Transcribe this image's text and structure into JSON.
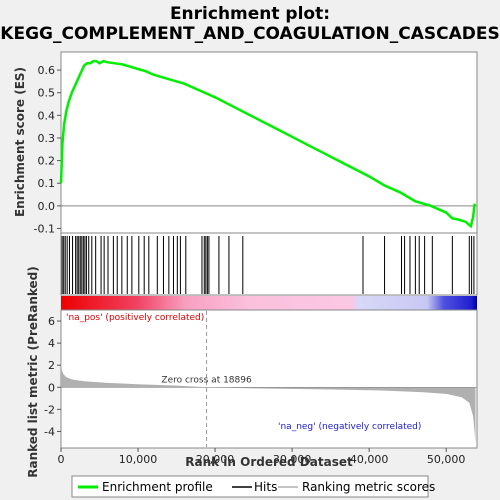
{
  "chart_data": {
    "type": "line",
    "title_line1": "Enrichment plot:",
    "title_line2": "KEGG_COMPLEMENT_AND_COAGULATION_CASCADES",
    "es_ylabel": "Enrichment score (ES)",
    "metric_ylabel_line1": "Ranked list metric (PreRanked)",
    "xlabel": "Rank in Ordered Dataset",
    "xlim": [
      0,
      54000
    ],
    "x_ticks": [
      0,
      10000,
      20000,
      30000,
      40000,
      50000
    ],
    "x_tick_labels": [
      "0",
      "10,000",
      "20,000",
      "30,000",
      "40,000",
      "50,000"
    ],
    "es_ylim": [
      -0.12,
      0.68
    ],
    "es_ticks": [
      -0.1,
      0.0,
      0.1,
      0.2,
      0.3,
      0.4,
      0.5,
      0.6
    ],
    "es_tick_labels": [
      "-0.1",
      "0.0",
      "0.1",
      "0.2",
      "0.3",
      "0.4",
      "0.5",
      "0.6"
    ],
    "metric_ylim": [
      -5.5,
      7.0
    ],
    "metric_ticks": [
      -4,
      -2,
      0,
      2,
      4,
      6
    ],
    "metric_tick_labels": [
      "-4",
      "-2",
      "0",
      "2",
      "4",
      "6"
    ],
    "enrichment_profile": {
      "x": [
        0,
        200,
        400,
        700,
        1000,
        1400,
        1800,
        2200,
        2600,
        3000,
        3400,
        3800,
        4200,
        4600,
        5000,
        5500,
        6000,
        7000,
        8000,
        9000,
        10000,
        11000,
        12000,
        13000,
        14000,
        15000,
        16000,
        18000,
        20000,
        22000,
        24000,
        26000,
        28000,
        30000,
        32000,
        34000,
        36000,
        38000,
        40000,
        42000,
        44000,
        46000,
        48000,
        50000,
        50800,
        51500,
        52500,
        53200,
        53500,
        53700
      ],
      "y": [
        0.1,
        0.28,
        0.36,
        0.42,
        0.46,
        0.5,
        0.53,
        0.56,
        0.59,
        0.62,
        0.63,
        0.63,
        0.64,
        0.64,
        0.63,
        0.64,
        0.635,
        0.63,
        0.625,
        0.615,
        0.605,
        0.595,
        0.58,
        0.57,
        0.56,
        0.55,
        0.54,
        0.51,
        0.48,
        0.445,
        0.41,
        0.375,
        0.34,
        0.305,
        0.27,
        0.235,
        0.2,
        0.165,
        0.13,
        0.09,
        0.06,
        0.02,
        0.0,
        -0.03,
        -0.055,
        -0.06,
        -0.07,
        -0.09,
        -0.05,
        0.01
      ]
    },
    "hits": [
      150,
      350,
      550,
      800,
      1100,
      1500,
      1900,
      2100,
      2300,
      2500,
      2700,
      2900,
      3100,
      3300,
      3600,
      4000,
      4500,
      5200,
      5600,
      6100,
      6800,
      7300,
      7900,
      8600,
      9200,
      10100,
      10800,
      11400,
      12500,
      13300,
      14000,
      14600,
      15100,
      15500,
      16200,
      18300,
      18600,
      18800,
      19000,
      19200,
      20500,
      21800,
      23600,
      39200,
      42000,
      44200,
      44600,
      45300,
      46000,
      46500,
      47200,
      48200,
      50800,
      53000,
      53300,
      53600
    ],
    "zero_cross_label": "Zero cross at 18896",
    "zero_cross": 18896,
    "pos_label": "'na_pos' (positively correlated)",
    "neg_label": "'na_neg' (negatively correlated)",
    "metric_profile": {
      "x": [
        0,
        100,
        300,
        700,
        1500,
        3000,
        6000,
        10000,
        15000,
        18896,
        25000,
        35000,
        42000,
        47000,
        50000,
        52000,
        53000,
        53500,
        53800
      ],
      "y": [
        2.6,
        1.6,
        1.2,
        0.9,
        0.7,
        0.55,
        0.4,
        0.28,
        0.15,
        0.0,
        -0.1,
        -0.2,
        -0.3,
        -0.45,
        -0.6,
        -0.9,
        -1.4,
        -2.6,
        -5.0
      ]
    },
    "legend": {
      "enrichment": "Enrichment profile",
      "hits": "Hits",
      "ranking": "Ranking metric scores"
    },
    "colors": {
      "enrichment": "#00ee00",
      "hits": "#000000",
      "metric": "#b0b0b0",
      "pos_text": "#dd0000",
      "neg_text": "#2020cc"
    }
  }
}
